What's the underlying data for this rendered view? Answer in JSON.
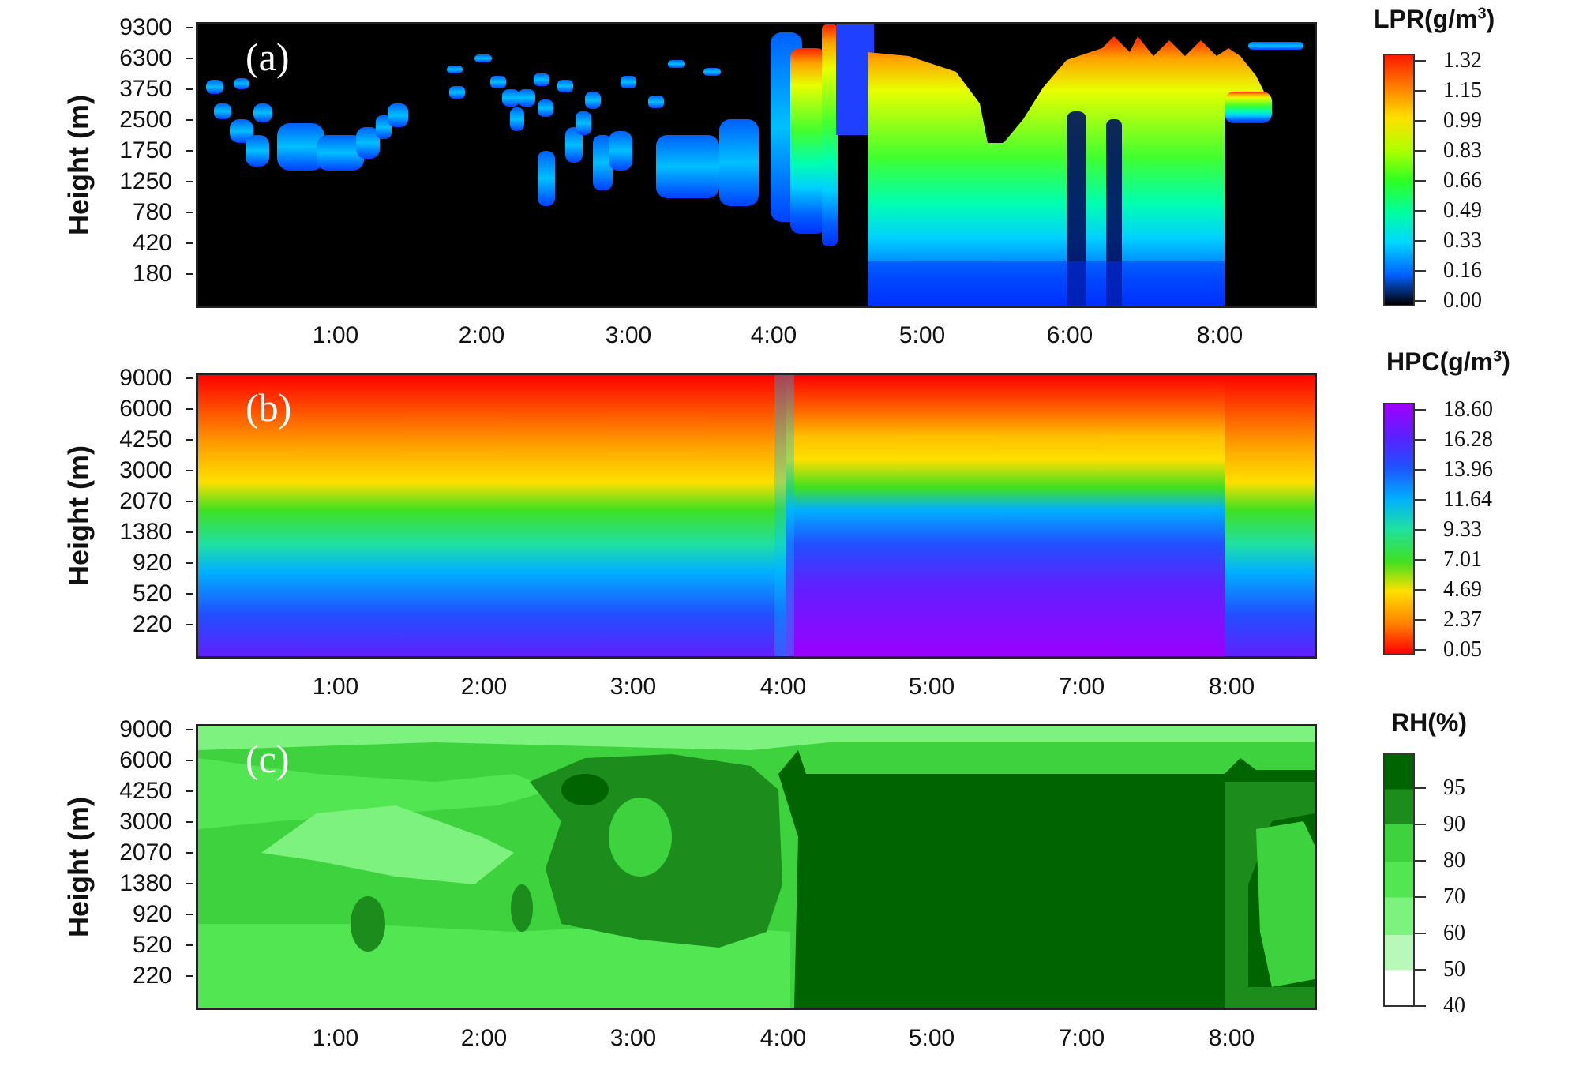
{
  "chart_data": [
    {
      "type": "heatmap",
      "panel_label": "(a)",
      "ylabel": "Height (m)",
      "y_ticks": [
        "9300",
        "6300",
        "3750",
        "2500",
        "1750",
        "1250",
        "780",
        "420",
        "180"
      ],
      "x_ticks": [
        "1:00",
        "2:00",
        "3:00",
        "4:00",
        "5:00",
        "6:00",
        "8:00"
      ],
      "colorbar": {
        "title": "LPR(g/m",
        "title_sup": "3",
        "title_end": ")",
        "values": [
          "1.32",
          "1.15",
          "0.99",
          "0.83",
          "0.66",
          "0.49",
          "0.33",
          "0.16",
          "0.00"
        ],
        "colors": [
          "#ff1a00",
          "#ff8000",
          "#ffe000",
          "#b0ff00",
          "#30ff20",
          "#00ffa0",
          "#00d8ff",
          "#0060ff",
          "#000000"
        ]
      },
      "background": "#000000"
    },
    {
      "type": "heatmap",
      "panel_label": "(b)",
      "ylabel": "Height (m)",
      "y_ticks": [
        "9000",
        "6000",
        "4250",
        "3000",
        "2070",
        "1380",
        "920",
        "520",
        "220"
      ],
      "x_ticks": [
        "1:00",
        "2:00",
        "3:00",
        "4:00",
        "5:00",
        "7:00",
        "8:00"
      ],
      "colorbar": {
        "title": "HPC(g/m",
        "title_sup": "3",
        "title_end": ")",
        "values": [
          "18.60",
          "16.28",
          "13.96",
          "11.64",
          "9.33",
          "7.01",
          "4.69",
          "2.37",
          "0.05"
        ],
        "colors": [
          "#a000ff",
          "#5a20ff",
          "#2050ff",
          "#00b0ff",
          "#20e0a0",
          "#40e020",
          "#ffe000",
          "#ff8000",
          "#ff0000"
        ]
      }
    },
    {
      "type": "heatmap",
      "panel_label": "(c)",
      "ylabel": "Height (m)",
      "y_ticks": [
        "9000",
        "6000",
        "4250",
        "3000",
        "2070",
        "1380",
        "920",
        "520",
        "220"
      ],
      "x_ticks": [
        "1:00",
        "2:00",
        "3:00",
        "4:00",
        "5:00",
        "7:00",
        "8:00"
      ],
      "colorbar": {
        "title": "RH(%)",
        "title_sup": "",
        "title_end": "",
        "values": [
          "95",
          "90",
          "80",
          "70",
          "60",
          "50",
          "40"
        ],
        "colors": [
          "#006400",
          "#1c8c1c",
          "#3ed33e",
          "#52e652",
          "#7ef27e",
          "#b8f8b8",
          "#ffffff"
        ]
      }
    }
  ]
}
